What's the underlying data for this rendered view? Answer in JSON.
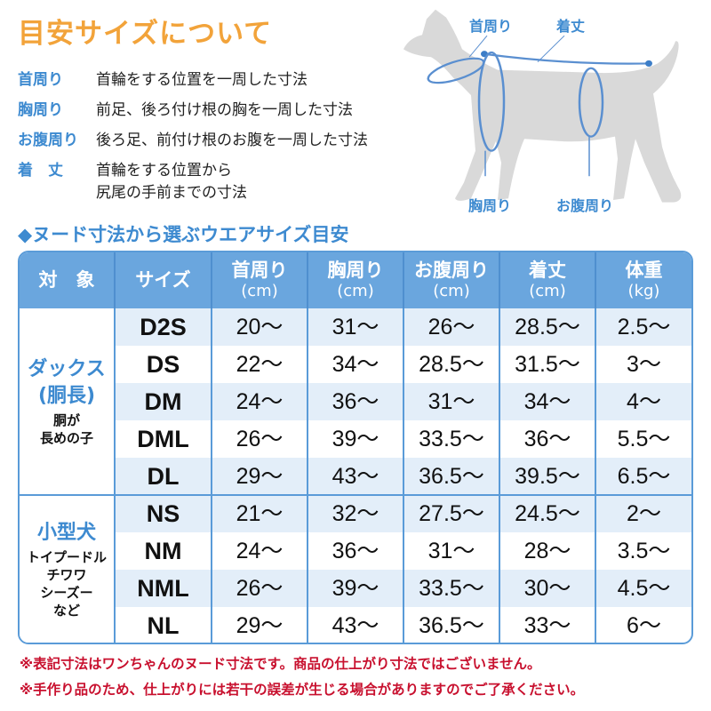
{
  "title": "目安サイズについて",
  "definitions": [
    {
      "term": "首周り",
      "desc": "首輪をする位置を一周した寸法"
    },
    {
      "term": "胸周り",
      "desc": "前足、後ろ付け根の胸を一周した寸法"
    },
    {
      "term": "お腹周り",
      "desc": "後ろ足、前付け根のお腹を一周した寸法"
    },
    {
      "term": "着　丈",
      "desc": "首輪をする位置から\n尻尾の手前までの寸法"
    }
  ],
  "diagram": {
    "neck": "首周り",
    "length": "着丈",
    "chest": "胸周り",
    "belly": "お腹周り"
  },
  "subtitle": "◆ヌード寸法から選ぶウエアサイズ目安",
  "table": {
    "headers": [
      {
        "label": "対　象",
        "unit": ""
      },
      {
        "label": "サイズ",
        "unit": ""
      },
      {
        "label": "首周り",
        "unit": "(cm)"
      },
      {
        "label": "胸周り",
        "unit": "(cm)"
      },
      {
        "label": "お腹周り",
        "unit": "(cm)"
      },
      {
        "label": "着丈",
        "unit": "(cm)"
      },
      {
        "label": "体重",
        "unit": "(kg)"
      }
    ],
    "groups": [
      {
        "name": "ダックス\n(胴長)",
        "desc": "胴が\n長めの子",
        "rows": [
          {
            "size": "D2S",
            "values": [
              "20〜",
              "31〜",
              "26〜",
              "28.5〜",
              "2.5〜"
            ]
          },
          {
            "size": "DS",
            "values": [
              "22〜",
              "34〜",
              "28.5〜",
              "31.5〜",
              "3〜"
            ]
          },
          {
            "size": "DM",
            "values": [
              "24〜",
              "36〜",
              "31〜",
              "34〜",
              "4〜"
            ]
          },
          {
            "size": "DML",
            "values": [
              "26〜",
              "39〜",
              "33.5〜",
              "36〜",
              "5.5〜"
            ]
          },
          {
            "size": "DL",
            "values": [
              "29〜",
              "43〜",
              "36.5〜",
              "39.5〜",
              "6.5〜"
            ]
          }
        ]
      },
      {
        "name": "小型犬",
        "desc": "トイプードル\nチワワ\nシーズー\nなど",
        "rows": [
          {
            "size": "NS",
            "values": [
              "21〜",
              "32〜",
              "27.5〜",
              "24.5〜",
              "2〜"
            ]
          },
          {
            "size": "NM",
            "values": [
              "24〜",
              "36〜",
              "31〜",
              "28〜",
              "3.5〜"
            ]
          },
          {
            "size": "NML",
            "values": [
              "26〜",
              "39〜",
              "33.5〜",
              "30〜",
              "4.5〜"
            ]
          },
          {
            "size": "NL",
            "values": [
              "29〜",
              "43〜",
              "36.5〜",
              "33〜",
              "6〜"
            ]
          }
        ]
      }
    ]
  },
  "notes": [
    "※表記寸法はワンちゃんのヌード寸法です。商品の仕上がり寸法ではございません。",
    "※手作り品のため、仕上がりには若干の誤差が生じる場合がありますのでご了承ください。"
  ],
  "colors": {
    "title": "#f2a33a",
    "accent": "#3d8ad0",
    "header": "#6aa6de",
    "band": "#e3eef9",
    "note": "#c8102e",
    "dog": "#d9d9d9"
  }
}
